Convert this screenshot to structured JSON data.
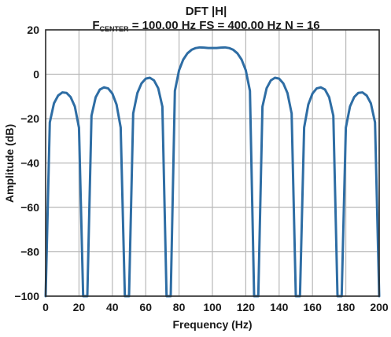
{
  "chart_data": {
    "type": "line",
    "title_main": "DFT |H|",
    "title_sub_parts": {
      "fcenter_prefix": "F",
      "fcenter_subscript": "CENTER",
      "rest": " = 100.00 Hz FS = 400.00 Hz N = 16"
    },
    "xlabel": "Frequency (Hz)",
    "ylabel": "Amplitude (dB)",
    "xlim": [
      0,
      200
    ],
    "ylim": [
      -100,
      20
    ],
    "xticks": [
      0,
      20,
      40,
      60,
      80,
      100,
      120,
      140,
      160,
      180,
      200
    ],
    "yticks": [
      20,
      0,
      -20,
      -40,
      -60,
      -80,
      -100
    ],
    "grid": true,
    "line_color": "#2e6da4",
    "series": [
      {
        "x": [
          0,
          2.5,
          5,
          7.5,
          10,
          12.5,
          15,
          17.5,
          20,
          22.5,
          25,
          27.5,
          30,
          32.5,
          35,
          37.5,
          40,
          42.5,
          45,
          47.5,
          50,
          52.5,
          55,
          57.5,
          60,
          62.5,
          65,
          67.5,
          70,
          72.5,
          75,
          77.5,
          80,
          82.5,
          85,
          87.5,
          90,
          92.5,
          95,
          97.5,
          100,
          102.5,
          105,
          107.5,
          110,
          112.5,
          115,
          117.5,
          120,
          122.5,
          125,
          127.5,
          130,
          132.5,
          135,
          137.5,
          140,
          142.5,
          145,
          147.5,
          150,
          152.5,
          155,
          157.5,
          160,
          162.5,
          165,
          167.5,
          170,
          172.5,
          175,
          177.5,
          180,
          182.5,
          185,
          187.5,
          190,
          192.5,
          195,
          197.5,
          200
        ],
        "y": [
          -100,
          -21.7,
          -13.1,
          -9.6,
          -8.2,
          -8.4,
          -10.3,
          -14.5,
          -24.1,
          -100,
          -100,
          -18.7,
          -10.4,
          -6.9,
          -5.9,
          -6.4,
          -8.7,
          -13.6,
          -24.0,
          -100,
          -100,
          -17.7,
          -8.5,
          -4.1,
          -2.0,
          -1.6,
          -2.8,
          -6.3,
          -14.6,
          -100,
          -100,
          -7.5,
          1.8,
          6.6,
          9.4,
          11.0,
          11.8,
          12.1,
          12.0,
          11.8,
          11.8,
          11.8,
          12.0,
          12.1,
          11.8,
          11.0,
          9.4,
          6.6,
          1.8,
          -7.5,
          -100,
          -100,
          -14.6,
          -6.3,
          -2.8,
          -1.6,
          -2.0,
          -4.1,
          -8.5,
          -17.7,
          -100,
          -100,
          -24.0,
          -13.6,
          -8.7,
          -6.4,
          -5.9,
          -6.9,
          -10.4,
          -18.7,
          -100,
          -100,
          -24.1,
          -14.5,
          -10.3,
          -8.4,
          -8.2,
          -9.6,
          -13.1,
          -21.7,
          -100
        ]
      }
    ]
  }
}
